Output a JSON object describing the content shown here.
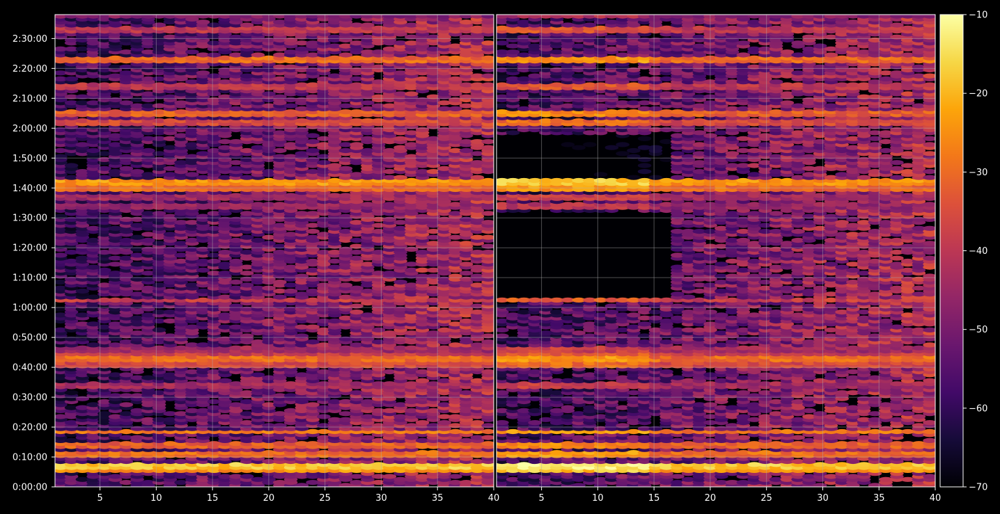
{
  "chart_data": {
    "type": "heatmap",
    "title": "",
    "xlabel": "",
    "ylabel": "",
    "panels": [
      {
        "name": "left",
        "xlim": [
          1,
          40
        ],
        "x_ticks": [
          {
            "value": 5,
            "label": "5"
          },
          {
            "value": 10,
            "label": "10"
          },
          {
            "value": 15,
            "label": "15"
          },
          {
            "value": 20,
            "label": "20"
          },
          {
            "value": 25,
            "label": "25"
          },
          {
            "value": 30,
            "label": "30"
          },
          {
            "value": 35,
            "label": "35"
          },
          {
            "value": 40,
            "label": "40"
          }
        ]
      },
      {
        "name": "right",
        "xlim": [
          1,
          40
        ],
        "x_ticks": [
          {
            "value": 5,
            "label": "5"
          },
          {
            "value": 10,
            "label": "10"
          },
          {
            "value": 15,
            "label": "15"
          },
          {
            "value": 20,
            "label": "20"
          },
          {
            "value": 25,
            "label": "25"
          },
          {
            "value": 30,
            "label": "30"
          },
          {
            "value": 35,
            "label": "35"
          },
          {
            "value": 40,
            "label": "40"
          }
        ]
      }
    ],
    "ylim_seconds": [
      0,
      9480
    ],
    "y_ticks": [
      {
        "seconds": 0,
        "label": "0:00:00"
      },
      {
        "seconds": 600,
        "label": "0:10:00"
      },
      {
        "seconds": 1200,
        "label": "0:20:00"
      },
      {
        "seconds": 1800,
        "label": "0:30:00"
      },
      {
        "seconds": 2400,
        "label": "0:40:00"
      },
      {
        "seconds": 3000,
        "label": "0:50:00"
      },
      {
        "seconds": 3600,
        "label": "1:00:00"
      },
      {
        "seconds": 4200,
        "label": "1:10:00"
      },
      {
        "seconds": 4800,
        "label": "1:20:00"
      },
      {
        "seconds": 5400,
        "label": "1:30:00"
      },
      {
        "seconds": 6000,
        "label": "1:40:00"
      },
      {
        "seconds": 6600,
        "label": "1:50:00"
      },
      {
        "seconds": 7200,
        "label": "2:00:00"
      },
      {
        "seconds": 7800,
        "label": "2:10:00"
      },
      {
        "seconds": 8400,
        "label": "2:20:00"
      },
      {
        "seconds": 9000,
        "label": "2:30:00"
      }
    ],
    "colorbar": {
      "colormap": "inferno",
      "range": [
        -70,
        -10
      ],
      "ticks": [
        {
          "value": -10,
          "label": "−10"
        },
        {
          "value": -20,
          "label": "−20"
        },
        {
          "value": -30,
          "label": "−30"
        },
        {
          "value": -40,
          "label": "−40"
        },
        {
          "value": -50,
          "label": "−50"
        },
        {
          "value": -60,
          "label": "−60"
        },
        {
          "value": -70,
          "label": "−70"
        }
      ]
    },
    "grid": true,
    "strong_bands": [
      {
        "seconds": 420,
        "value": -18
      },
      {
        "seconds": 330,
        "value": -24
      },
      {
        "seconds": 640,
        "value": -30
      },
      {
        "seconds": 850,
        "value": -32
      },
      {
        "seconds": 1110,
        "value": -28
      },
      {
        "seconds": 2020,
        "value": -44
      },
      {
        "seconds": 2450,
        "value": -36
      },
      {
        "seconds": 2560,
        "value": -30
      },
      {
        "seconds": 2670,
        "value": -38
      },
      {
        "seconds": 2780,
        "value": -44
      },
      {
        "seconds": 3750,
        "value": -38
      },
      {
        "seconds": 5630,
        "value": -46
      },
      {
        "seconds": 5810,
        "value": -44
      },
      {
        "seconds": 5980,
        "value": -30
      },
      {
        "seconds": 6100,
        "value": -24
      },
      {
        "seconds": 7340,
        "value": -36
      },
      {
        "seconds": 7480,
        "value": -32
      },
      {
        "seconds": 8060,
        "value": -40
      },
      {
        "seconds": 8600,
        "value": -30
      },
      {
        "seconds": 9190,
        "value": -40
      },
      {
        "seconds": 9450,
        "value": -48
      }
    ]
  }
}
